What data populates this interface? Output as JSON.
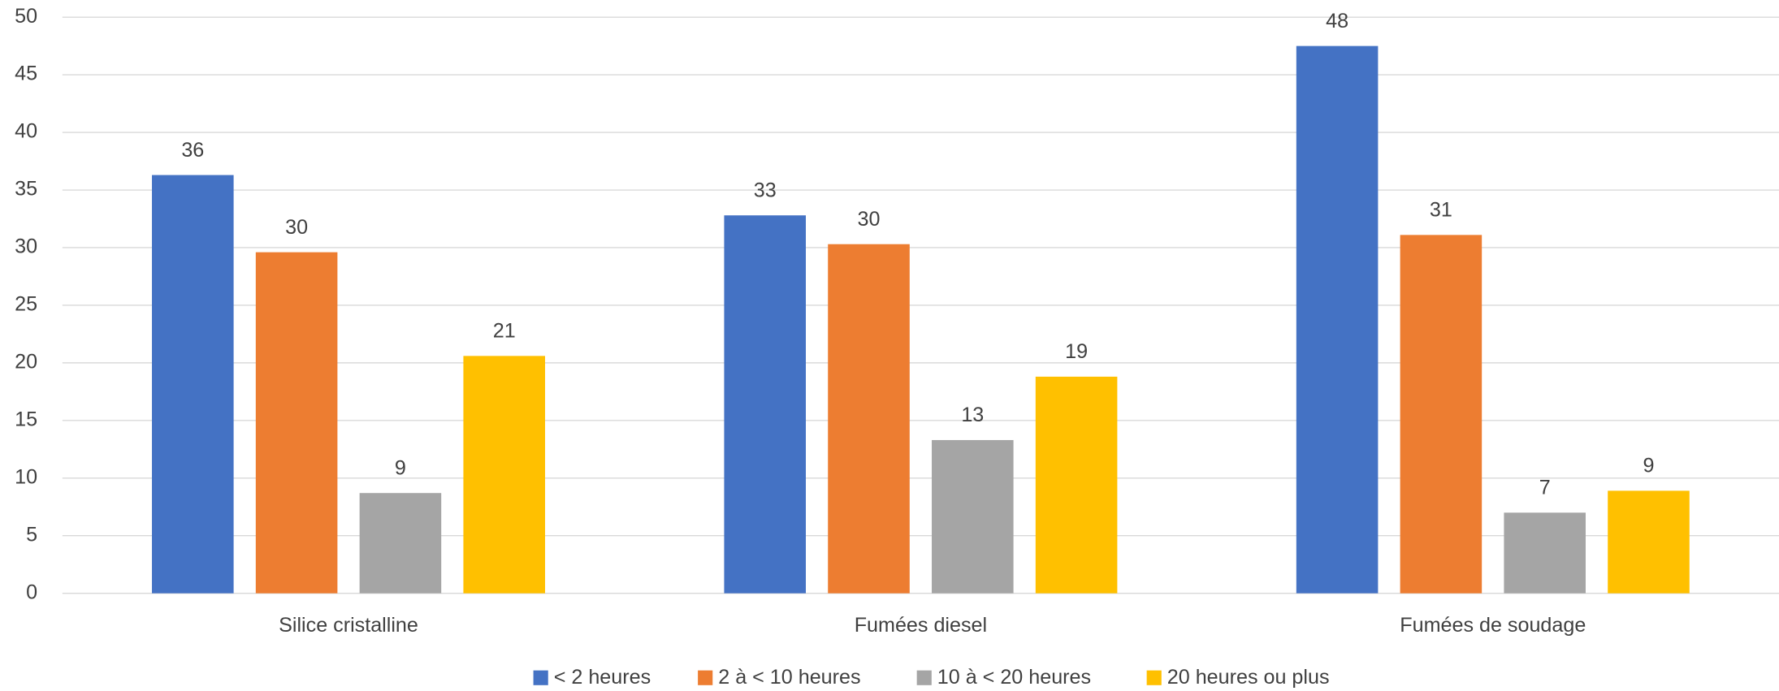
{
  "chart_data": {
    "type": "bar",
    "categories": [
      "Silice cristalline",
      "Fumées diesel",
      "Fumées de soudage"
    ],
    "series": [
      {
        "name": "< 2 heures",
        "color": "#4472c4",
        "values": [
          36.3,
          32.8,
          47.5
        ],
        "value_labels": [
          "36",
          "33",
          "48"
        ]
      },
      {
        "name": "2 à < 10 heures",
        "color": "#ed7d31",
        "values": [
          29.6,
          30.3,
          31.1
        ],
        "value_labels": [
          "30",
          "30",
          "31"
        ]
      },
      {
        "name": "10 à < 20 heures",
        "color": "#a5a5a5",
        "values": [
          8.7,
          13.3,
          7.0
        ],
        "value_labels": [
          "9",
          "13",
          "7"
        ]
      },
      {
        "name": "20 heures ou plus",
        "color": "#ffc000",
        "values": [
          20.6,
          18.8,
          8.9
        ],
        "value_labels": [
          "21",
          "19",
          "9"
        ]
      }
    ],
    "ylim": [
      0,
      50
    ],
    "yticks": [
      0,
      5,
      10,
      15,
      20,
      25,
      30,
      35,
      40,
      45,
      50
    ],
    "grid": true,
    "legend": "bottom"
  }
}
